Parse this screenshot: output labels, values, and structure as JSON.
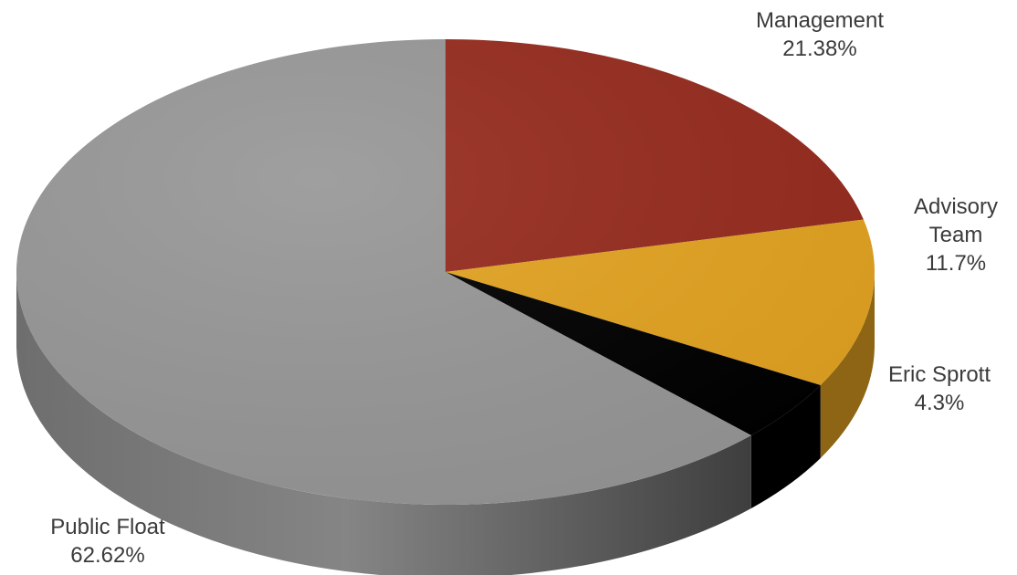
{
  "chart_data": {
    "type": "pie",
    "style": "3d",
    "start_angle": "12 o'clock",
    "direction": "clockwise",
    "legend": "none",
    "slices": [
      {
        "label": "Management",
        "label_lines": [
          "Management"
        ],
        "value": 21.38,
        "value_text": "21.38%",
        "color": "#962b1e"
      },
      {
        "label": "Advisory Team",
        "label_lines": [
          "Advisory",
          "Team"
        ],
        "value": 11.7,
        "value_text": "11.7%",
        "color": "#e3a321"
      },
      {
        "label": "Eric Sprott",
        "label_lines": [
          "Eric Sprott"
        ],
        "value": 4.3,
        "value_text": "4.3%",
        "color": "#000000"
      },
      {
        "label": "Public Float",
        "label_lines": [
          "Public Float"
        ],
        "value": 62.62,
        "value_text": "62.62%",
        "color": "#979797"
      }
    ]
  }
}
